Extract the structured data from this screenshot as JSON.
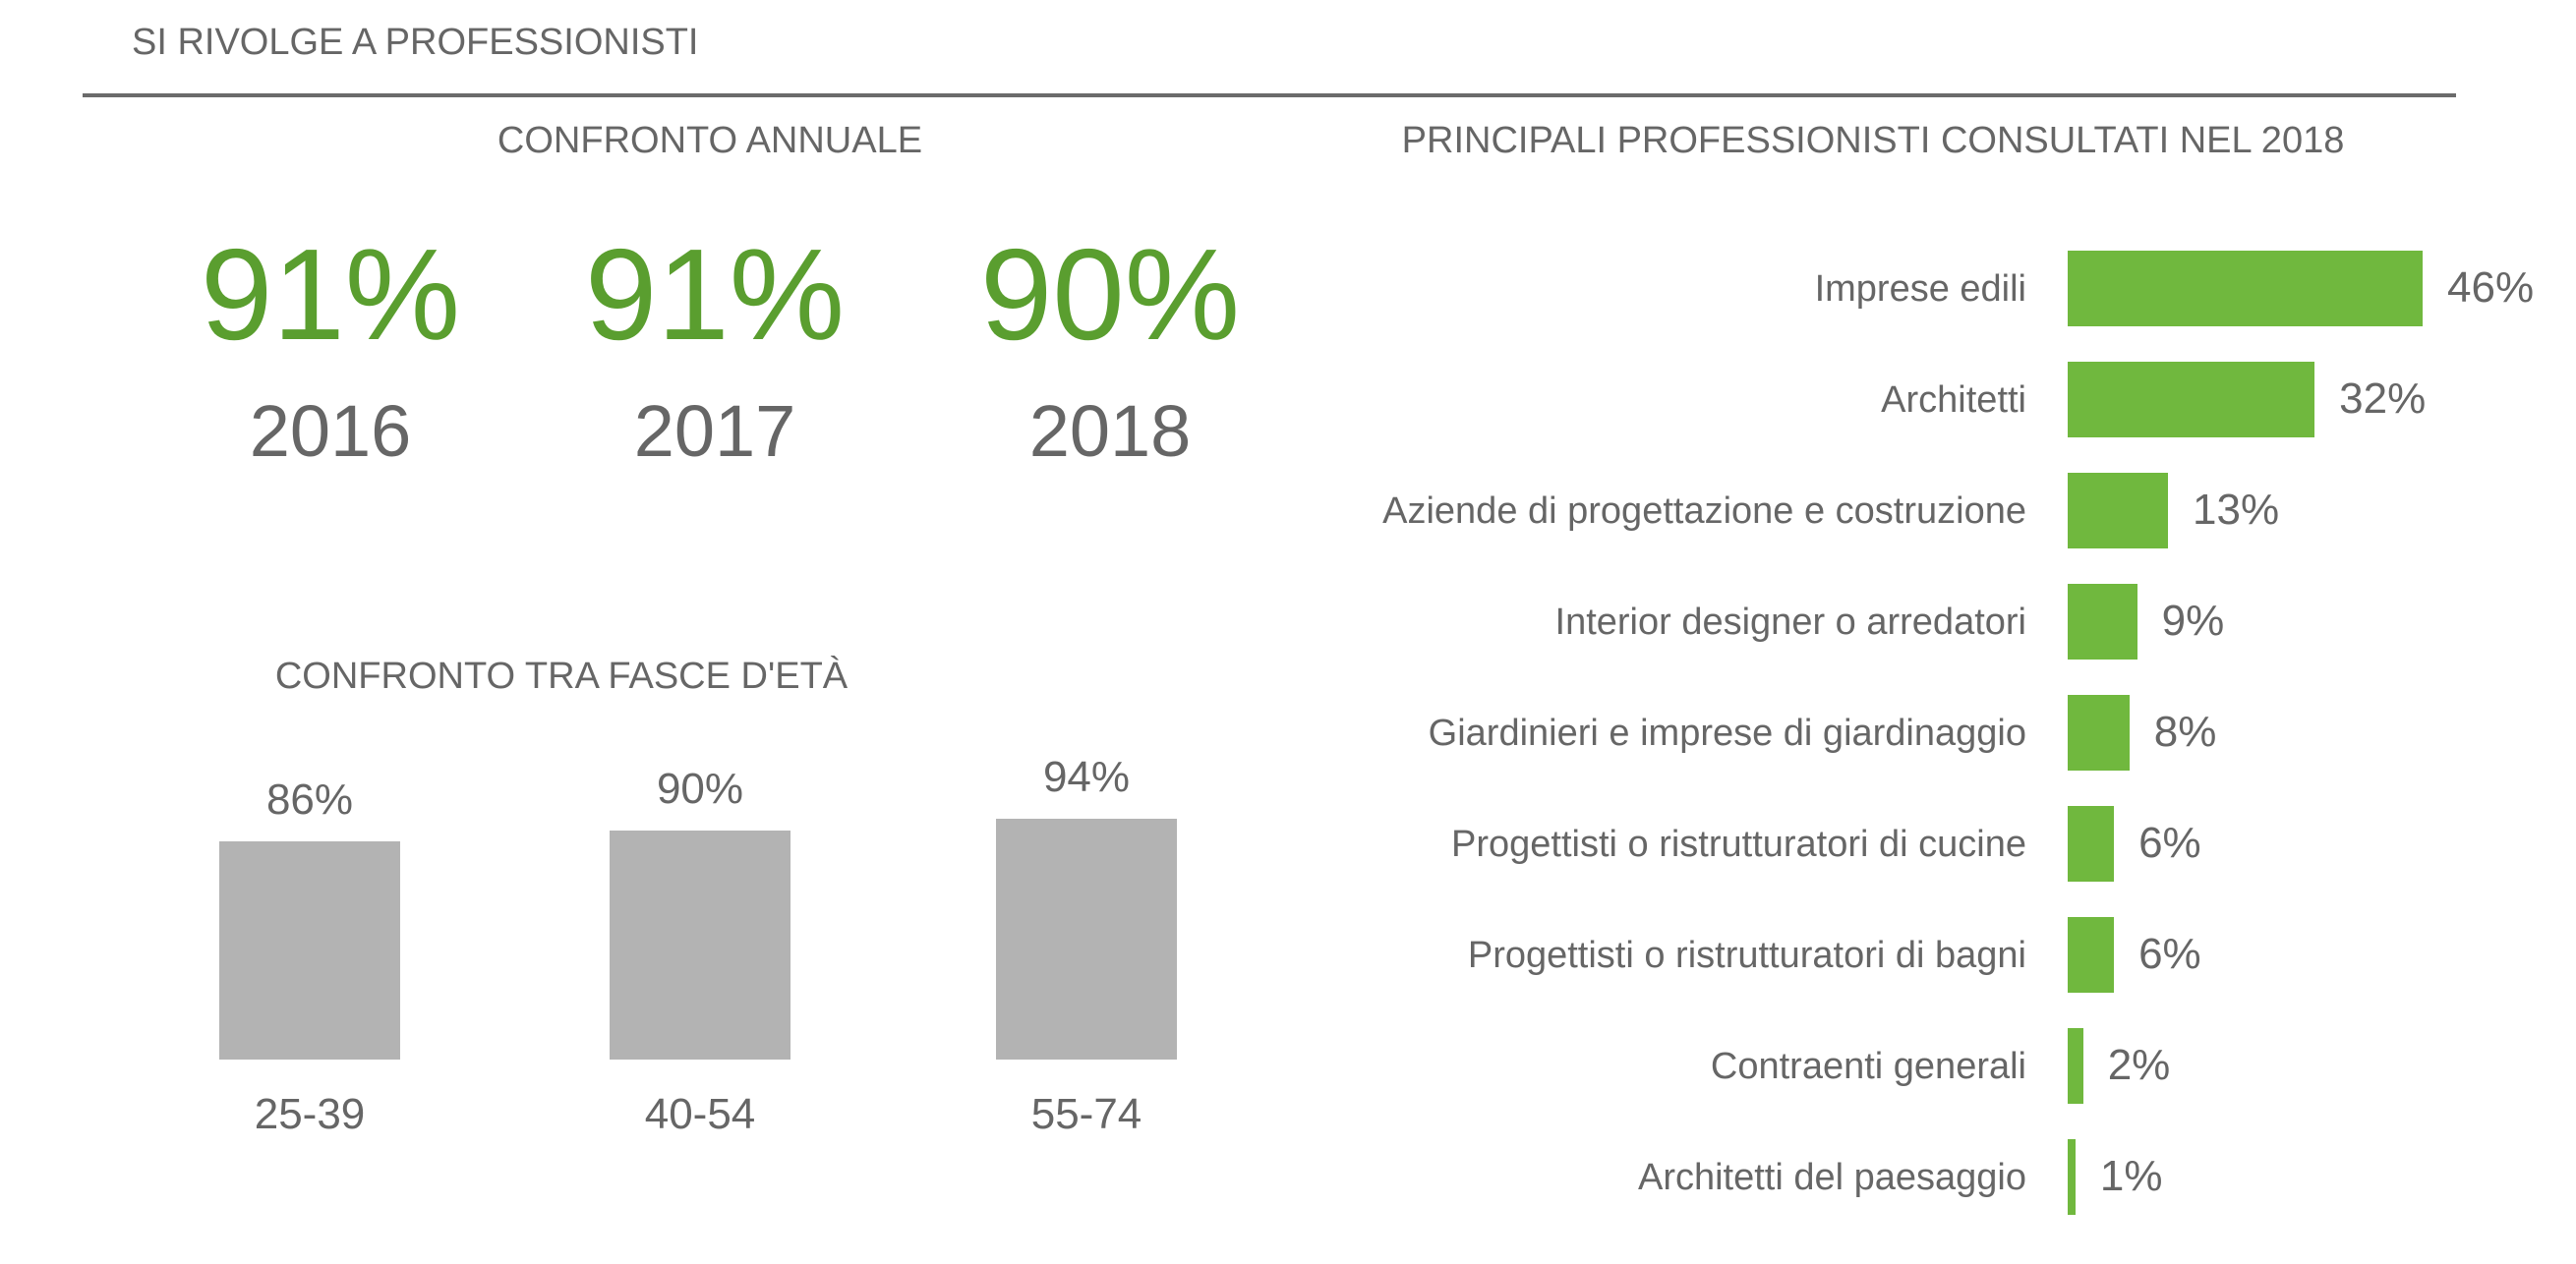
{
  "title": "SI RIVOLGE A PROFESSIONISTI",
  "colors": {
    "accent_text": "#5a9e2f",
    "bar_green": "#70b83e",
    "bar_gray": "#b3b3b3",
    "text": "#666666"
  },
  "annual": {
    "heading": "CONFRONTO ANNUALE",
    "items": [
      {
        "value": "91%",
        "year": "2016"
      },
      {
        "value": "91%",
        "year": "2017"
      },
      {
        "value": "90%",
        "year": "2018"
      }
    ]
  },
  "chart_data": [
    {
      "type": "bar",
      "title": "CONFRONTO TRA FASCE D'ETÀ",
      "categories": [
        "25-39",
        "40-54",
        "55-74"
      ],
      "values": [
        86,
        90,
        94
      ],
      "labels": [
        "86%",
        "90%",
        "94%"
      ],
      "xlabel": "",
      "ylabel": "",
      "ylim": [
        0,
        100
      ]
    },
    {
      "type": "bar",
      "orientation": "horizontal",
      "title": "PRINCIPALI PROFESSIONISTI CONSULTATI NEL 2018",
      "categories": [
        "Imprese edili",
        "Architetti",
        "Aziende di progettazione e costruzione",
        "Interior designer o arredatori",
        "Giardinieri e imprese di giardinaggio",
        "Progettisti o ristrutturatori di cucine",
        "Progettisti o ristrutturatori di bagni",
        "Contraenti generali",
        "Architetti del paesaggio"
      ],
      "values": [
        46,
        32,
        13,
        9,
        8,
        6,
        6,
        2,
        1
      ],
      "labels": [
        "46%",
        "32%",
        "13%",
        "9%",
        "8%",
        "6%",
        "6%",
        "2%",
        "1%"
      ],
      "xlabel": "",
      "ylabel": "",
      "xlim": [
        0,
        46
      ]
    }
  ]
}
